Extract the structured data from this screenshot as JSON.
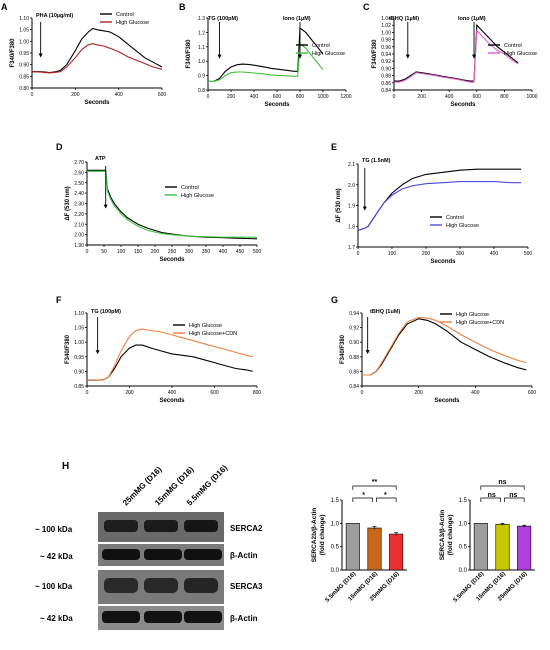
{
  "colors": {
    "control": "#000000",
    "hg_red": "#b22222",
    "hg_green": "#3cc43c",
    "hg_pink": "#e060c8",
    "hg_blue": "#4b4be0",
    "hg_cdn": "#f08040",
    "bar_gray": "#9e9e9e",
    "bar_orange": "#c8681a",
    "bar_red": "#e83030",
    "bar_yellow": "#c8c800",
    "bar_purple": "#b040e0"
  },
  "chart_data": [
    {
      "id": "A",
      "type": "line",
      "panel_label": "A",
      "annotations": [
        "PHA (10µg/ml)"
      ],
      "xlabel": "Seconds",
      "ylabel": "F340/F380",
      "xlim": [
        0,
        600
      ],
      "ylim": [
        0.8,
        1.1
      ],
      "xticks": [
        0,
        200,
        400,
        600
      ],
      "yticks": [
        "0.80",
        "0.85",
        "0.90",
        "0.95",
        "1.00",
        "1.05",
        "1.10"
      ],
      "series": [
        {
          "name": "Control",
          "x": [
            0,
            40,
            60,
            80,
            100,
            130,
            160,
            200,
            230,
            260,
            280,
            300,
            330,
            360,
            400,
            440,
            480,
            520,
            560,
            600
          ],
          "y": [
            0.87,
            0.87,
            0.868,
            0.866,
            0.868,
            0.875,
            0.9,
            0.96,
            1.01,
            1.04,
            1.055,
            1.05,
            1.045,
            1.04,
            1.02,
            0.99,
            0.96,
            0.93,
            0.91,
            0.89
          ]
        },
        {
          "name": "High Glucose",
          "x": [
            0,
            40,
            60,
            80,
            100,
            130,
            160,
            200,
            230,
            260,
            280,
            300,
            330,
            360,
            400,
            440,
            480,
            520,
            560,
            600
          ],
          "y": [
            0.87,
            0.868,
            0.866,
            0.865,
            0.866,
            0.87,
            0.89,
            0.93,
            0.965,
            0.985,
            0.99,
            0.985,
            0.98,
            0.97,
            0.955,
            0.935,
            0.92,
            0.905,
            0.89,
            0.88
          ]
        }
      ]
    },
    {
      "id": "B",
      "type": "line",
      "panel_label": "B",
      "annotations": [
        "TG (100pM)",
        "Iono (1µM)"
      ],
      "xlabel": "Seconds",
      "ylabel": "F340/F380",
      "xlim": [
        0,
        1200
      ],
      "ylim": [
        0.8,
        1.3
      ],
      "xticks": [
        0,
        200,
        400,
        600,
        800,
        1000,
        1200
      ],
      "yticks": [
        "0.8",
        "0.9",
        "1.0",
        "1.1",
        "1.2",
        "1.3"
      ],
      "series": [
        {
          "name": "Control",
          "x": [
            0,
            50,
            100,
            150,
            200,
            250,
            300,
            350,
            400,
            450,
            500,
            550,
            600,
            650,
            700,
            750,
            780,
            800,
            850,
            900,
            950,
            1000
          ],
          "y": [
            0.86,
            0.86,
            0.88,
            0.93,
            0.96,
            0.975,
            0.98,
            0.978,
            0.972,
            0.965,
            0.958,
            0.95,
            0.945,
            0.94,
            0.935,
            0.93,
            0.93,
            1.23,
            1.2,
            1.15,
            1.1,
            1.05
          ]
        },
        {
          "name": "High Glucose",
          "x": [
            0,
            50,
            100,
            150,
            200,
            250,
            300,
            350,
            400,
            450,
            500,
            550,
            600,
            650,
            700,
            750,
            780,
            800,
            850,
            900,
            950,
            1000
          ],
          "y": [
            0.86,
            0.86,
            0.87,
            0.9,
            0.92,
            0.925,
            0.925,
            0.922,
            0.918,
            0.914,
            0.91,
            0.905,
            0.902,
            0.9,
            0.898,
            0.895,
            0.895,
            1.12,
            1.09,
            1.04,
            0.99,
            0.94
          ]
        }
      ]
    },
    {
      "id": "C",
      "type": "line",
      "panel_label": "C",
      "annotations": [
        "tBHQ (1µM)",
        "Iono (1µM)"
      ],
      "xlabel": "Seconds",
      "ylabel": "F340/F380",
      "xlim": [
        0,
        1000
      ],
      "ylim": [
        0.84,
        1.04
      ],
      "xticks": [
        0,
        200,
        400,
        600,
        800,
        1000
      ],
      "yticks": [
        "0.84",
        "0.86",
        "0.88",
        "0.90",
        "0.92",
        "0.94",
        "0.96",
        "0.98",
        "1.00",
        "1.02",
        "1.04"
      ],
      "series": [
        {
          "name": "Control",
          "x": [
            0,
            40,
            80,
            120,
            160,
            200,
            250,
            300,
            350,
            400,
            450,
            500,
            550,
            580,
            600,
            650,
            700,
            750,
            800,
            850,
            900
          ],
          "y": [
            0.865,
            0.865,
            0.87,
            0.88,
            0.89,
            0.888,
            0.885,
            0.882,
            0.878,
            0.875,
            0.872,
            0.868,
            0.865,
            0.865,
            1.02,
            1.0,
            0.98,
            0.96,
            0.945,
            0.93,
            0.915
          ]
        },
        {
          "name": "High Glucose",
          "x": [
            0,
            40,
            80,
            120,
            160,
            200,
            250,
            300,
            350,
            400,
            450,
            500,
            550,
            580,
            600,
            650,
            700,
            750,
            800,
            850,
            900
          ],
          "y": [
            0.862,
            0.862,
            0.867,
            0.877,
            0.888,
            0.886,
            0.883,
            0.88,
            0.876,
            0.873,
            0.87,
            0.866,
            0.862,
            0.862,
            1.005,
            0.985,
            0.965,
            0.95,
            0.94,
            0.925,
            0.912
          ]
        }
      ]
    },
    {
      "id": "D",
      "type": "line",
      "panel_label": "D",
      "annotations": [
        "ATP"
      ],
      "xlabel": "Seconds",
      "ylabel": "ΔF (530 nm)",
      "xlim": [
        0,
        500
      ],
      "ylim": [
        1.9,
        2.7
      ],
      "xticks": [
        0,
        50,
        100,
        150,
        200,
        250,
        300,
        350,
        400,
        450,
        500
      ],
      "yticks": [
        "1.90",
        "2.00",
        "2.10",
        "2.20",
        "2.30",
        "2.40",
        "2.50",
        "2.60",
        "2.70"
      ],
      "series": [
        {
          "name": "Control",
          "x": [
            0,
            20,
            40,
            55,
            60,
            70,
            80,
            100,
            120,
            150,
            180,
            220,
            260,
            300,
            350,
            400,
            450,
            500
          ],
          "y": [
            2.62,
            2.62,
            2.62,
            2.62,
            2.44,
            2.36,
            2.3,
            2.22,
            2.16,
            2.1,
            2.06,
            2.02,
            2.0,
            1.985,
            1.975,
            1.97,
            1.965,
            1.96
          ]
        },
        {
          "name": "High Glucose",
          "x": [
            0,
            20,
            40,
            55,
            60,
            70,
            80,
            100,
            120,
            150,
            180,
            220,
            260,
            300,
            350,
            400,
            450,
            500
          ],
          "y": [
            2.61,
            2.61,
            2.61,
            2.61,
            2.42,
            2.34,
            2.28,
            2.2,
            2.14,
            2.08,
            2.04,
            2.01,
            1.995,
            1.985,
            1.98,
            1.975,
            1.975,
            1.975
          ]
        }
      ]
    },
    {
      "id": "E",
      "type": "line",
      "panel_label": "E",
      "annotations": [
        "TG (1.5nM)"
      ],
      "xlabel": "Seconds",
      "ylabel": "ΔF (530 nm)",
      "xlim": [
        0,
        500
      ],
      "ylim": [
        1.7,
        2.1
      ],
      "xticks": [
        0,
        100,
        200,
        300,
        400,
        500
      ],
      "yticks": [
        "1.7",
        "1.8",
        "1.9",
        "2.0",
        "2.1"
      ],
      "series": [
        {
          "name": "Control",
          "x": [
            0,
            20,
            30,
            50,
            75,
            100,
            130,
            160,
            200,
            250,
            300,
            350,
            400,
            450,
            480
          ],
          "y": [
            1.78,
            1.79,
            1.8,
            1.85,
            1.91,
            1.96,
            2.0,
            2.03,
            2.05,
            2.06,
            2.07,
            2.075,
            2.075,
            2.075,
            2.075
          ]
        },
        {
          "name": "High Glucose",
          "x": [
            0,
            20,
            30,
            50,
            75,
            100,
            130,
            160,
            200,
            250,
            300,
            350,
            400,
            450,
            480
          ],
          "y": [
            1.78,
            1.79,
            1.8,
            1.85,
            1.91,
            1.95,
            1.98,
            1.995,
            2.005,
            2.01,
            2.015,
            2.015,
            2.015,
            2.01,
            2.01
          ]
        }
      ]
    },
    {
      "id": "F",
      "type": "line",
      "panel_label": "F",
      "annotations": [
        "TG (100pM)"
      ],
      "xlabel": "Seconds",
      "ylabel": "F340/F380",
      "xlim": [
        0,
        800
      ],
      "ylim": [
        0.85,
        1.1
      ],
      "xticks": [
        0,
        200,
        400,
        600,
        800
      ],
      "yticks": [
        "0.85",
        "0.90",
        "0.95",
        "1.00",
        "1.05",
        "1.10"
      ],
      "series": [
        {
          "name": "High Glucose",
          "x": [
            0,
            50,
            80,
            100,
            130,
            160,
            200,
            230,
            260,
            300,
            350,
            400,
            450,
            500,
            550,
            600,
            650,
            700,
            750,
            780
          ],
          "y": [
            0.87,
            0.87,
            0.872,
            0.88,
            0.91,
            0.95,
            0.98,
            0.99,
            0.99,
            0.98,
            0.97,
            0.96,
            0.955,
            0.95,
            0.94,
            0.93,
            0.92,
            0.91,
            0.905,
            0.9
          ]
        },
        {
          "name": "High Glucose+CDN",
          "x": [
            0,
            50,
            80,
            100,
            130,
            160,
            200,
            230,
            260,
            300,
            350,
            400,
            450,
            500,
            550,
            600,
            650,
            700,
            750,
            780
          ],
          "y": [
            0.87,
            0.87,
            0.872,
            0.88,
            0.92,
            0.97,
            1.02,
            1.04,
            1.045,
            1.04,
            1.035,
            1.025,
            1.015,
            1.005,
            0.995,
            0.985,
            0.975,
            0.965,
            0.955,
            0.95
          ]
        }
      ]
    },
    {
      "id": "G",
      "type": "line",
      "panel_label": "G",
      "annotations": [
        "tBHQ (1uM)"
      ],
      "xlabel": "Seconds",
      "ylabel": "F340/F380",
      "xlim": [
        0,
        600
      ],
      "ylim": [
        0.84,
        0.94
      ],
      "xticks": [
        0,
        200,
        400,
        600
      ],
      "yticks": [
        "0.84",
        "0.86",
        "0.88",
        "0.90",
        "0.92",
        "0.94"
      ],
      "series": [
        {
          "name": "High Glucose",
          "x": [
            0,
            30,
            50,
            70,
            100,
            130,
            160,
            200,
            230,
            260,
            300,
            350,
            400,
            450,
            500,
            550,
            580
          ],
          "y": [
            0.855,
            0.855,
            0.86,
            0.87,
            0.89,
            0.91,
            0.925,
            0.932,
            0.93,
            0.925,
            0.915,
            0.9,
            0.89,
            0.88,
            0.872,
            0.865,
            0.862
          ]
        },
        {
          "name": "High Glucose+CDN",
          "x": [
            0,
            30,
            50,
            70,
            100,
            130,
            160,
            200,
            230,
            260,
            300,
            350,
            400,
            450,
            500,
            550,
            580
          ],
          "y": [
            0.855,
            0.855,
            0.86,
            0.872,
            0.892,
            0.912,
            0.928,
            0.934,
            0.933,
            0.93,
            0.922,
            0.91,
            0.9,
            0.89,
            0.882,
            0.875,
            0.872
          ]
        }
      ]
    },
    {
      "id": "H2",
      "type": "bar",
      "ylabel": "SERCA2b/β-Actin\n(fold change)",
      "ylim": [
        0.0,
        1.5
      ],
      "yticks": [
        "0.0",
        "0.5",
        "1.0",
        "1.5"
      ],
      "categories": [
        "5.5mMG (D16)",
        "15mMG (D16)",
        "25mMG (D16)"
      ],
      "values": [
        1.0,
        0.9,
        0.77
      ],
      "errors": [
        0.0,
        0.03,
        0.03
      ],
      "significance": [
        "**",
        "*",
        "*"
      ]
    },
    {
      "id": "H3",
      "type": "bar",
      "ylabel": "SERCA3/β-Actin\n(fold change)",
      "ylim": [
        0.0,
        1.5
      ],
      "yticks": [
        "0.0",
        "0.5",
        "1.0",
        "1.5"
      ],
      "categories": [
        "5.5mMG (D16)",
        "15mMG (D16)",
        "25mMG (D16)"
      ],
      "values": [
        1.0,
        0.98,
        0.94
      ],
      "errors": [
        0.0,
        0.02,
        0.02
      ],
      "significance": [
        "ns",
        "ns",
        "ns"
      ]
    }
  ],
  "blot": {
    "panel_label": "H",
    "lanes": [
      "25mMG (D16)",
      "15mMG (D16)",
      "5.5mMG (D16)"
    ],
    "rows": [
      {
        "mw": "~ 100 kDa",
        "name": "SERCA2"
      },
      {
        "mw": "~ 42 kDa",
        "name": "β-Actin"
      },
      {
        "mw": "~ 100 kDa",
        "name": "SERCA3"
      },
      {
        "mw": "~ 42 kDa",
        "name": "β-Actin"
      }
    ]
  }
}
